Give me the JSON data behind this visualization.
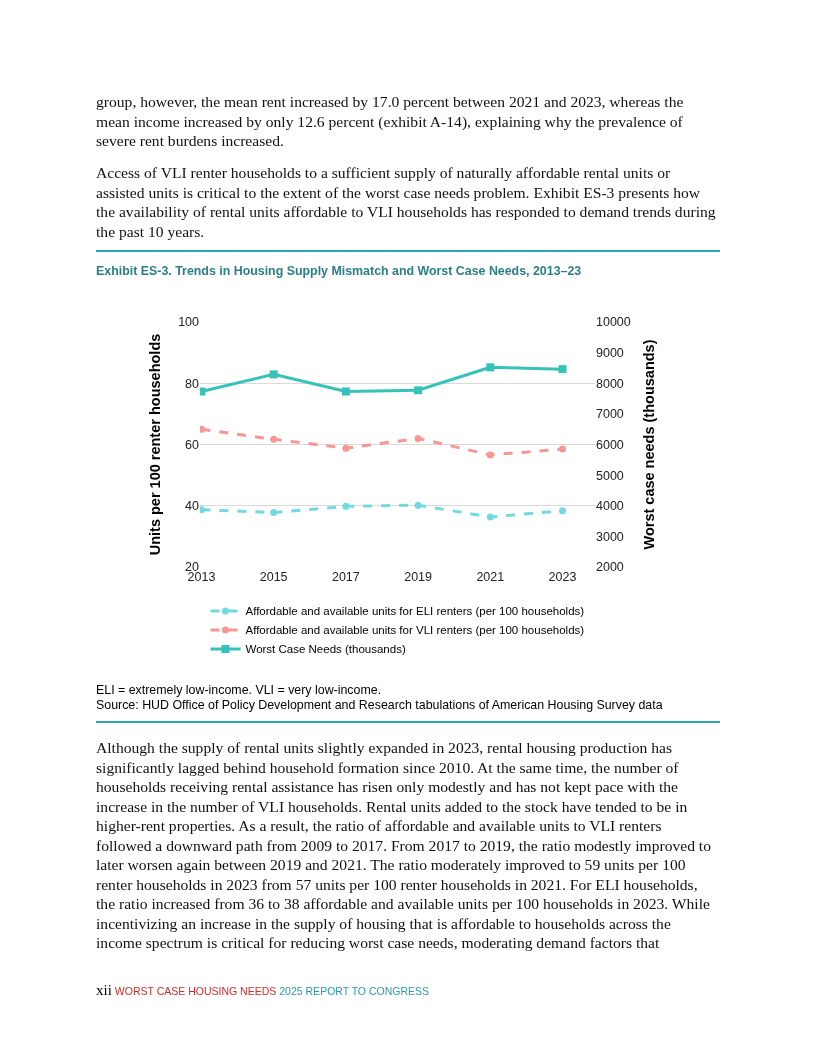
{
  "chart_data": {
    "type": "line",
    "title": "Exhibit ES-3. Trends in Housing Supply Mismatch and Worst Case Needs, 2013–23",
    "categories": [
      "2013",
      "2015",
      "2017",
      "2019",
      "2021",
      "2023"
    ],
    "series": [
      {
        "name": "Affordable and available units for ELI renters (per 100 households)",
        "color": "#6fdbe0",
        "values": [
          38.7,
          37.8,
          39.8,
          40.2,
          36.3,
          38.4
        ],
        "marker": "circle",
        "line_style": "dashed"
      },
      {
        "name": "Affordable and available units for VLI renters (per 100 households)",
        "color": "#f79693",
        "values": [
          65.0,
          61.7,
          58.8,
          62.0,
          56.6,
          58.5
        ],
        "marker": "circle",
        "line_style": "dashed"
      },
      {
        "name": "Worst Case Needs (thousands)",
        "color": "#36c2b8",
        "values": [
          7730,
          8290,
          7730,
          7770,
          8520,
          8460
        ],
        "marker": "square",
        "line_style": "solid",
        "axis": "y2"
      }
    ],
    "ylabel": "Units per 100 renter households",
    "y2label": "Worst case needs (thousands)",
    "ylim": [
      20,
      100
    ],
    "yticks": [
      20,
      40,
      60,
      80,
      100
    ],
    "y2lim": [
      2000,
      10000
    ],
    "y2ticks": [
      2000,
      3000,
      4000,
      5000,
      6000,
      7000,
      8000,
      9000,
      10000
    ],
    "grid": "y",
    "legend": "bottom",
    "annotations": [
      "group, however, the mean rent increased by 17.0 percent between 2021 and 2023, whereas the mean income increased by only 12.6 percent (exhibit A-14), explaining why the prevalence of severe rent burdens increased.",
      "Access of VLI renter households to a sufficient supply of naturally affordable rental units or assisted units is critical to the extent of the worst case needs problem. Exhibit ES-3 presents how the availability of rental units affordable to VLI households has responded to demand trends during the past 10 years.",
      "ELI = extremely low-income. VLI = very low-income.",
      "Source: HUD Office of Policy Development and Research tabulations of American Housing Survey data",
      "Although the supply of rental units slightly expanded in 2023, rental housing production has significantly lagged behind household formation since 2010. At the same time, the number of households receiving rental assistance has risen only modestly and has not kept pace with the increase in the number of VLI households. Rental units added to the stock have tended to be in higher-rent properties. As a result, the ratio of affordable and available units to VLI renters followed a downward path from 2009 to 2017. From 2017 to 2019, the ratio modestly improved to later worsen again between 2019 and 2021. The ratio moderately improved to 59 units per 100 renter households in 2023 from 57 units per 100 renter households in 2021. For ELI households, the ratio increased from 36 to 38 affordable and available units per 100 households in 2023. While incentivizing an increase in the supply of housing that is affordable to households across the income spectrum is critical for reducing worst case needs, moderating demand factors that",
      "xii",
      "WORST CASE HOUSING NEEDS",
      "2025 REPORT TO CONGRESS"
    ]
  }
}
